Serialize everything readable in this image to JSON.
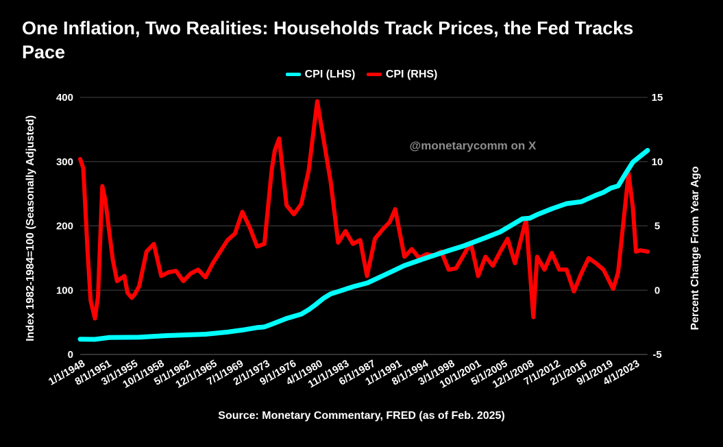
{
  "title": "One Inflation, Two Realities: Households Track Prices, the Fed Tracks Pace",
  "source": "Source: Monetary Commentary, FRED (as of Feb. 2025)",
  "watermark": "@monetarycomm on X",
  "colors": {
    "background": "#000000",
    "lhs_series": "#00FFFF",
    "rhs_series": "#FF0000",
    "grid": "#444444"
  },
  "chart_data": {
    "type": "line",
    "title": "One Inflation, Two Realities: Households Track Prices, the Fed Tracks Pace",
    "ylabel_left": "Index 1982-1984=100 (Seasonally Adjusted)",
    "ylabel_right": "Percent Change From Year Ago",
    "ylim_left": [
      0,
      400
    ],
    "ylim_right": [
      -5,
      15
    ],
    "yticks_left": [
      "0",
      "100",
      "200",
      "300",
      "400"
    ],
    "yticks_right": [
      "-5",
      "0",
      "5",
      "10",
      "15"
    ],
    "xlim": [
      "1/1/1948",
      "1/1/2025"
    ],
    "xtick_labels": [
      "1/1/1948",
      "8/1/1951",
      "3/1/1955",
      "10/1/1958",
      "5/1/1962",
      "12/1/1965",
      "7/1/1969",
      "2/1/1973",
      "9/1/1976",
      "4/1/1980",
      "11/1/1983",
      "6/1/1987",
      "1/1/1991",
      "8/1/1994",
      "3/1/1998",
      "10/1/2001",
      "5/1/2005",
      "12/1/2008",
      "7/1/2012",
      "2/1/2016",
      "9/1/2019",
      "4/1/2023"
    ],
    "grid": "horizontal",
    "legend_position": "top-center",
    "series": [
      {
        "name": "CPI (LHS)",
        "axis": "left",
        "color": "#00FFFF",
        "x": [
          "1/1/1948",
          "1/1/1950",
          "1/1/1952",
          "1/1/1956",
          "1/1/1960",
          "1/1/1965",
          "1/1/1968",
          "1/1/1970",
          "1/1/1972",
          "1/1/1973",
          "1/1/1974",
          "1/1/1976",
          "1/1/1978",
          "1/1/1979",
          "1/1/1980",
          "1/1/1981",
          "1/1/1982",
          "1/1/1983",
          "1/1/1985",
          "1/1/1987",
          "1/1/1990",
          "1/1/1992",
          "1/1/1995",
          "1/1/1998",
          "1/1/2000",
          "1/1/2003",
          "1/1/2005",
          "1/1/2008",
          "1/1/2009",
          "1/1/2010",
          "1/1/2012",
          "1/1/2014",
          "1/1/2016",
          "1/1/2018",
          "1/1/2019",
          "1/1/2020",
          "1/1/2021",
          "1/1/2022",
          "1/1/2023",
          "1/1/2024",
          "1/1/2025"
        ],
        "values": [
          23.7,
          23.5,
          26.5,
          26.8,
          29.4,
          31.5,
          34.9,
          38.0,
          41.8,
          42.8,
          47.0,
          56.0,
          62.7,
          69.5,
          78.0,
          87.3,
          94.3,
          97.8,
          105.3,
          111.4,
          127.5,
          138.3,
          150.3,
          161.6,
          168.8,
          181.7,
          190.7,
          211.1,
          211.9,
          217.5,
          226.7,
          234.7,
          237.7,
          247.8,
          252.2,
          258.8,
          262.2,
          281.1,
          299.2,
          308.4,
          317.6
        ]
      },
      {
        "name": "CPI (RHS)",
        "axis": "right",
        "color": "#FF0000",
        "x": [
          "1/1/1948",
          "6/1/1948",
          "1/1/1949",
          "6/1/1949",
          "1/1/1950",
          "6/1/1950",
          "1/1/1951",
          "6/1/1951",
          "1/1/1952",
          "6/1/1952",
          "1/1/1953",
          "1/1/1954",
          "6/1/1954",
          "1/1/1955",
          "6/1/1955",
          "1/1/1956",
          "1/1/1957",
          "1/1/1958",
          "1/1/1959",
          "1/1/1960",
          "1/1/1961",
          "1/1/1962",
          "1/1/1963",
          "1/1/1964",
          "1/1/1965",
          "1/1/1966",
          "1/1/1967",
          "1/1/1968",
          "1/1/1969",
          "1/1/1970",
          "1/1/1971",
          "1/1/1972",
          "1/1/1973",
          "1/1/1974",
          "6/1/1974",
          "1/1/1975",
          "1/1/1976",
          "1/1/1977",
          "1/1/1978",
          "1/1/1979",
          "3/1/1980",
          "1/1/1981",
          "1/1/1982",
          "1/1/1983",
          "1/1/1984",
          "1/1/1985",
          "1/1/1986",
          "12/1/1986",
          "1/1/1988",
          "1/1/1989",
          "1/1/1990",
          "10/1/1990",
          "1/1/1992",
          "1/1/1993",
          "1/1/1994",
          "1/1/1995",
          "1/1/1996",
          "1/1/1997",
          "1/1/1998",
          "1/1/1999",
          "1/1/2000",
          "1/1/2001",
          "1/1/2002",
          "1/1/2003",
          "1/1/2004",
          "1/1/2005",
          "1/1/2006",
          "1/1/2007",
          "7/1/2008",
          "7/1/2009",
          "1/1/2010",
          "1/1/2011",
          "1/1/2012",
          "1/1/2013",
          "1/1/2014",
          "1/1/2015",
          "1/1/2016",
          "1/1/2017",
          "1/1/2018",
          "1/1/2019",
          "5/1/2020",
          "1/1/2021",
          "6/1/2022",
          "1/1/2023",
          "6/1/2023",
          "1/1/2024",
          "1/1/2025"
        ],
        "values": [
          10.2,
          9.5,
          3.0,
          -0.8,
          -2.2,
          -0.5,
          8.1,
          7.0,
          4.3,
          2.4,
          0.7,
          1.1,
          -0.2,
          -0.6,
          -0.3,
          0.3,
          3.0,
          3.6,
          1.1,
          1.4,
          1.5,
          0.7,
          1.3,
          1.6,
          1.0,
          2.1,
          3.0,
          3.9,
          4.4,
          6.1,
          4.9,
          3.4,
          3.6,
          9.4,
          10.9,
          11.8,
          6.6,
          5.9,
          6.7,
          9.3,
          14.7,
          11.8,
          8.4,
          3.7,
          4.6,
          3.6,
          3.9,
          1.1,
          4.0,
          4.7,
          5.3,
          6.3,
          2.6,
          3.2,
          2.5,
          2.8,
          2.7,
          3.0,
          1.6,
          1.7,
          2.7,
          3.7,
          1.1,
          2.6,
          1.9,
          3.0,
          4.0,
          2.1,
          5.5,
          -2.1,
          2.6,
          1.6,
          2.9,
          1.6,
          1.6,
          -0.1,
          1.3,
          2.5,
          2.1,
          1.6,
          0.1,
          1.4,
          9.1,
          6.4,
          3.0,
          3.1,
          3.0
        ]
      }
    ]
  }
}
